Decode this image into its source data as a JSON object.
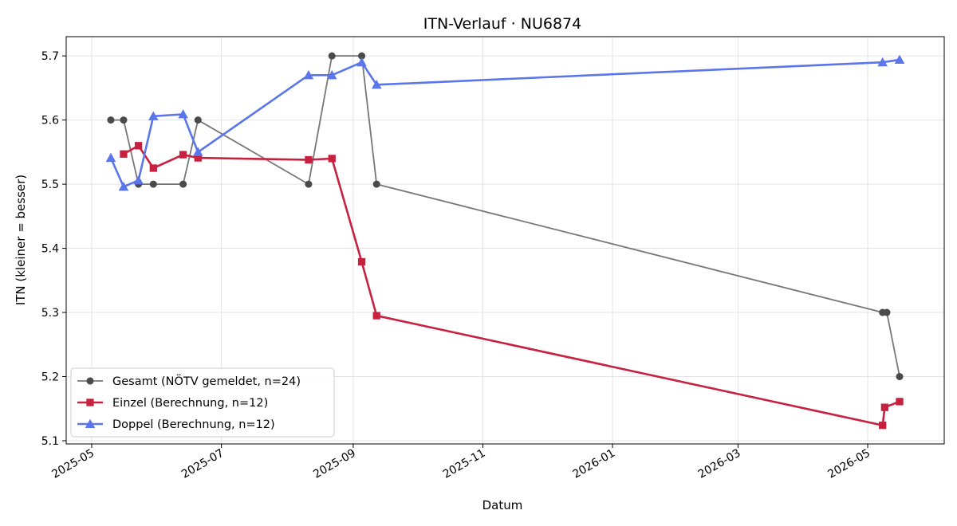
{
  "chart_data": {
    "type": "line",
    "title": "ITN-Verlauf · NU6874",
    "xlabel": "Datum",
    "ylabel": "ITN  (kleiner = besser)",
    "xlim": [
      "2025-04-19",
      "2026-06-06"
    ],
    "ylim": [
      5.095,
      5.73
    ],
    "x_ticks": [
      "2025-05-01",
      "2025-07-01",
      "2025-09-01",
      "2025-11-01",
      "2026-01-01",
      "2026-03-01",
      "2026-05-01"
    ],
    "x_tick_labels": [
      "2025-05",
      "2025-07",
      "2025-09",
      "2025-11",
      "2026-01",
      "2026-03",
      "2026-05"
    ],
    "y_ticks": [
      5.1,
      5.2,
      5.3,
      5.4,
      5.5,
      5.6,
      5.7
    ],
    "y_tick_labels": [
      "5.1",
      "5.2",
      "5.3",
      "5.4",
      "5.5",
      "5.6",
      "5.7"
    ],
    "grid": true,
    "legend_position": "lower-left",
    "series": [
      {
        "name": "Gesamt (NÖTV gemeldet, n=24)",
        "color": "#4a4a4a",
        "marker": "circle",
        "points": [
          {
            "x": "2025-05-10",
            "y": 5.6
          },
          {
            "x": "2025-05-16",
            "y": 5.6
          },
          {
            "x": "2025-05-23",
            "y": 5.5
          },
          {
            "x": "2025-05-30",
            "y": 5.5
          },
          {
            "x": "2025-06-13",
            "y": 5.5
          },
          {
            "x": "2025-06-20",
            "y": 5.6
          },
          {
            "x": "2025-08-11",
            "y": 5.5
          },
          {
            "x": "2025-08-22",
            "y": 5.7
          },
          {
            "x": "2025-09-05",
            "y": 5.7
          },
          {
            "x": "2025-09-12",
            "y": 5.5
          },
          {
            "x": "2026-05-08",
            "y": 5.3
          },
          {
            "x": "2026-05-10",
            "y": 5.3
          },
          {
            "x": "2026-05-16",
            "y": 5.2
          }
        ]
      },
      {
        "name": "Einzel (Berechnung, n=12)",
        "color": "#c8213f",
        "marker": "square",
        "points": [
          {
            "x": "2025-05-16",
            "y": 5.547
          },
          {
            "x": "2025-05-23",
            "y": 5.56
          },
          {
            "x": "2025-05-30",
            "y": 5.525
          },
          {
            "x": "2025-06-13",
            "y": 5.546
          },
          {
            "x": "2025-06-20",
            "y": 5.541
          },
          {
            "x": "2025-08-11",
            "y": 5.538
          },
          {
            "x": "2025-08-22",
            "y": 5.54
          },
          {
            "x": "2025-09-05",
            "y": 5.379
          },
          {
            "x": "2025-09-12",
            "y": 5.295
          },
          {
            "x": "2026-05-08",
            "y": 5.124
          },
          {
            "x": "2026-05-09",
            "y": 5.152
          },
          {
            "x": "2026-05-16",
            "y": 5.161
          }
        ]
      },
      {
        "name": "Doppel (Berechnung, n=12)",
        "color": "#5b76ea",
        "marker": "triangle",
        "points": [
          {
            "x": "2025-05-10",
            "y": 5.541
          },
          {
            "x": "2025-05-16",
            "y": 5.496
          },
          {
            "x": "2025-05-23",
            "y": 5.506
          },
          {
            "x": "2025-05-30",
            "y": 5.606
          },
          {
            "x": "2025-06-13",
            "y": 5.609
          },
          {
            "x": "2025-06-20",
            "y": 5.55
          },
          {
            "x": "2025-08-11",
            "y": 5.67
          },
          {
            "x": "2025-08-22",
            "y": 5.67
          },
          {
            "x": "2025-09-05",
            "y": 5.69
          },
          {
            "x": "2025-09-12",
            "y": 5.655
          },
          {
            "x": "2026-05-08",
            "y": 5.69
          },
          {
            "x": "2026-05-16",
            "y": 5.694
          }
        ]
      }
    ]
  }
}
